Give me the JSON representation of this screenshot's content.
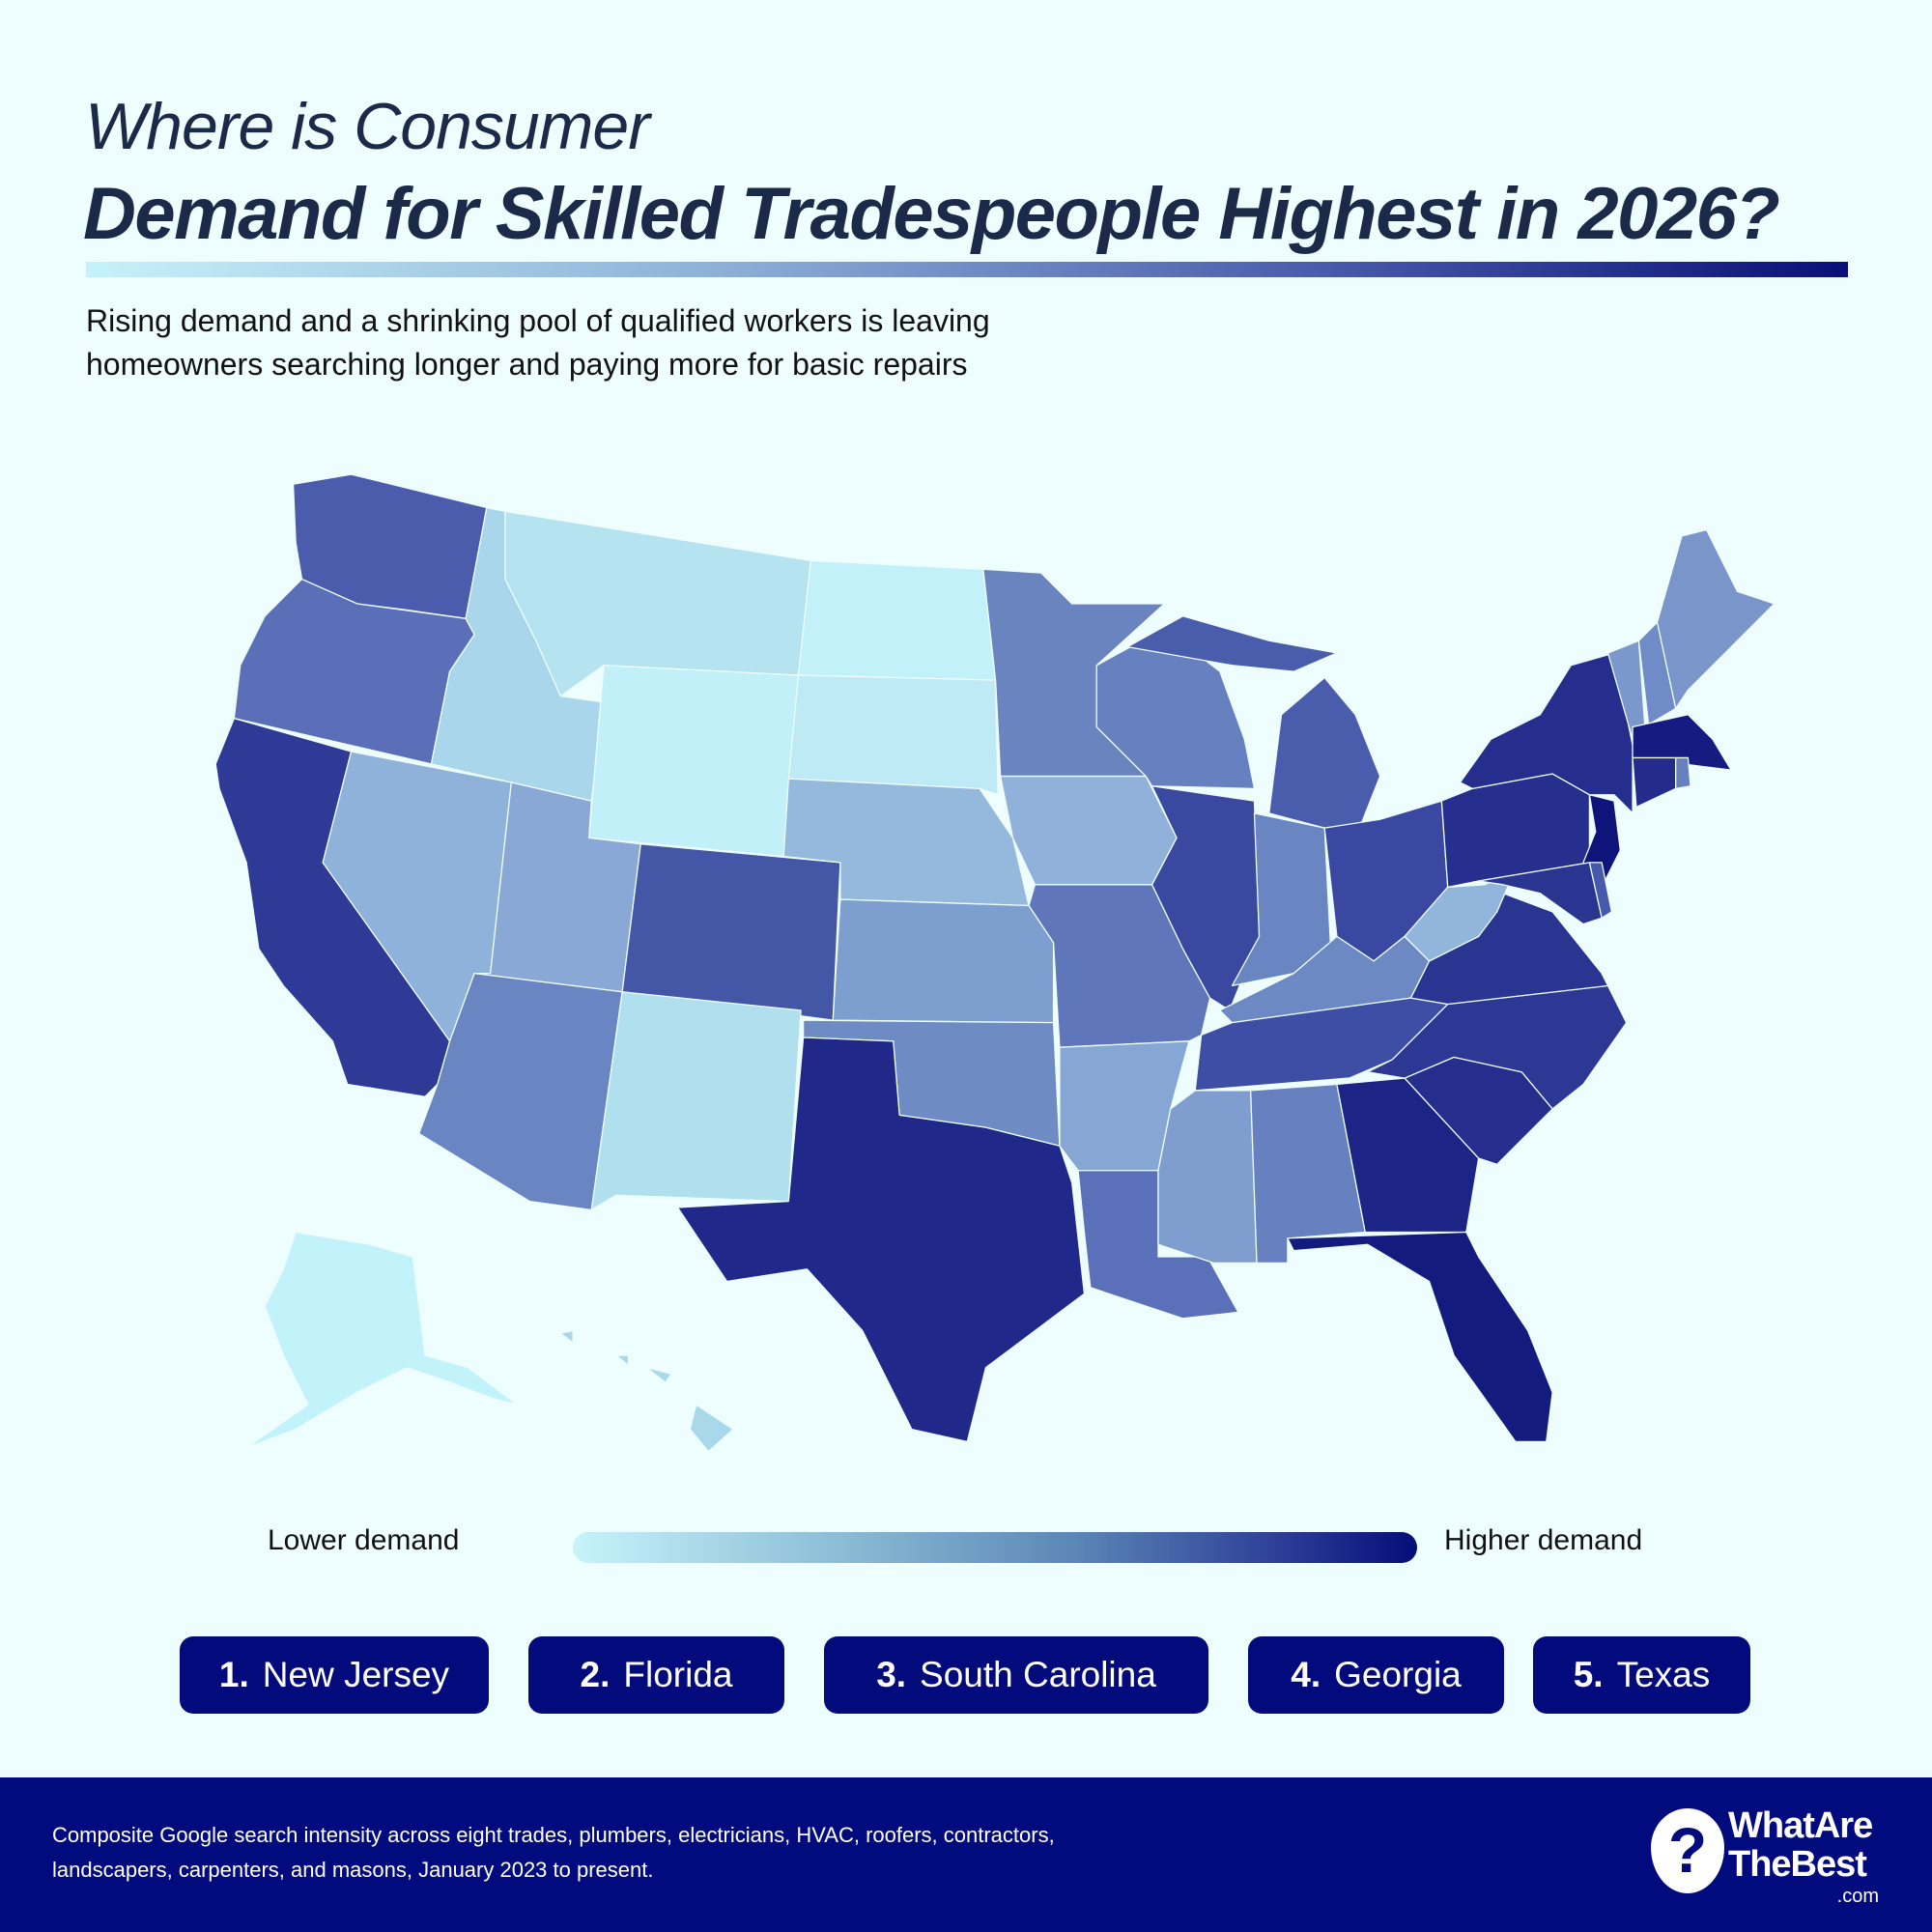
{
  "title": {
    "line1": "Where is Consumer",
    "line2": "Demand for Skilled Tradespeople Highest in 2026?"
  },
  "subtitle": [
    "Rising demand and a shrinking pool of qualified workers is leaving",
    "homeowners searching longer and paying more for basic repairs"
  ],
  "legend": {
    "low": "Lower demand",
    "high": "Higher demand",
    "colors": [
      "#c6f4fa",
      "#050d78"
    ]
  },
  "ranking": [
    {
      "rank": "1.",
      "state": "New Jersey"
    },
    {
      "rank": "2.",
      "state": "Florida"
    },
    {
      "rank": "3.",
      "state": "South Carolina"
    },
    {
      "rank": "4.",
      "state": "Georgia"
    },
    {
      "rank": "5.",
      "state": "Texas"
    }
  ],
  "footer": {
    "note": "Composite Google search intensity across eight trades, plumbers, electricians, HVAC, roofers, contractors, landscapers, carpenters, and masons, January 2023 to present.",
    "logo_line1": "WhatAre",
    "logo_line2": "TheBest",
    "logo_domain": ".com",
    "logo_mark": "?"
  },
  "map": {
    "states": {
      "WA": "#4a5cab",
      "OR": "#5a6fb7",
      "CA": "#2e3a95",
      "NV": "#8fb2da",
      "ID": "#a9d6eb",
      "MT": "#b5e3f0",
      "WY": "#c1f0f8",
      "UT": "#8aa8d5",
      "CO": "#4456a6",
      "AZ": "#6a86c2",
      "NM": "#b0dfee",
      "ND": "#c2f1f9",
      "SD": "#bdeaf5",
      "NE": "#95b9dd",
      "KS": "#7d9fcf",
      "OK": "#6e8bc4",
      "TX": "#20288a",
      "MN": "#6a84c0",
      "IA": "#8fb1da",
      "MO": "#5f77ba",
      "AR": "#86a6d4",
      "LA": "#5a70b8",
      "WI": "#6780c0",
      "IL": "#3a48a0",
      "MI": "#4a5cac",
      "IN": "#6a86c2",
      "OH": "#3a48a2",
      "KY": "#6d89c3",
      "TN": "#3e4ea5",
      "MS": "#7f9dcf",
      "AL": "#6680c0",
      "GA": "#1c2485",
      "FL": "#141b7f",
      "SC": "#252e8c",
      "NC": "#2c3893",
      "VA": "#2a3591",
      "WV": "#92b5dc",
      "PA": "#262f8d",
      "NY": "#252e8c",
      "NJ": "#0e147a",
      "MD": "#2a3491",
      "DE": "#4659aa",
      "VT": "#7b98cc",
      "NH": "#6f8cc6",
      "ME": "#7a95ca",
      "MA": "#151b80",
      "CT": "#232c8b",
      "RI": "#6680c0",
      "AK": "#c2f2fa",
      "HI": "#a8d8ea"
    }
  }
}
